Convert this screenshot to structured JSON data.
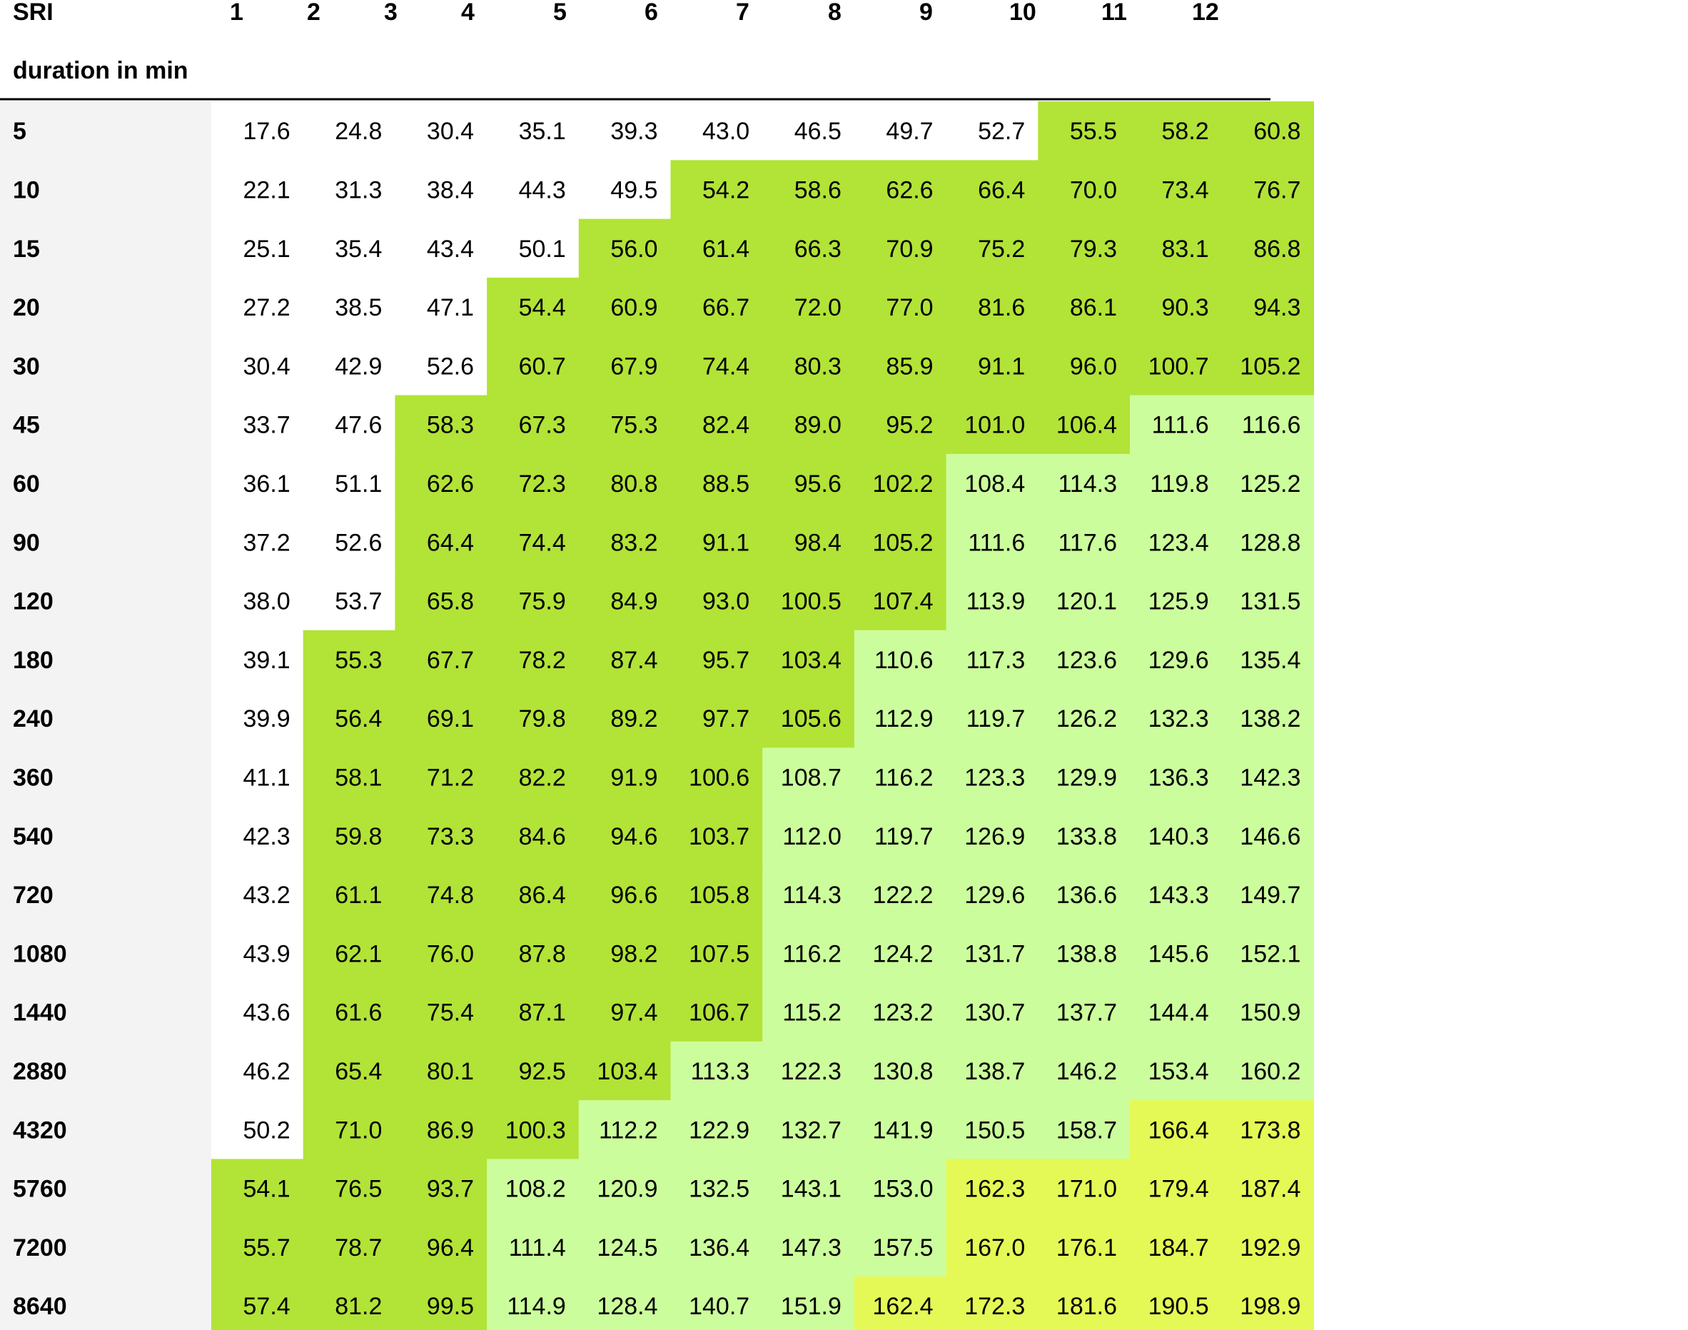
{
  "chart_data": {
    "type": "table",
    "corner_label": "SRI",
    "row_axis_label": "duration in min",
    "columns": [
      "1",
      "2",
      "3",
      "4",
      "5",
      "6",
      "7",
      "8",
      "9",
      "10",
      "11",
      "12"
    ],
    "rows": [
      {
        "label": "5",
        "values": [
          17.6,
          24.8,
          30.4,
          35.1,
          39.3,
          43.0,
          46.5,
          49.7,
          52.7,
          55.5,
          58.2,
          60.8
        ]
      },
      {
        "label": "10",
        "values": [
          22.1,
          31.3,
          38.4,
          44.3,
          49.5,
          54.2,
          58.6,
          62.6,
          66.4,
          70.0,
          73.4,
          76.7
        ]
      },
      {
        "label": "15",
        "values": [
          25.1,
          35.4,
          43.4,
          50.1,
          56.0,
          61.4,
          66.3,
          70.9,
          75.2,
          79.3,
          83.1,
          86.8
        ]
      },
      {
        "label": "20",
        "values": [
          27.2,
          38.5,
          47.1,
          54.4,
          60.9,
          66.7,
          72.0,
          77.0,
          81.6,
          86.1,
          90.3,
          94.3
        ]
      },
      {
        "label": "30",
        "values": [
          30.4,
          42.9,
          52.6,
          60.7,
          67.9,
          74.4,
          80.3,
          85.9,
          91.1,
          96.0,
          100.7,
          105.2
        ]
      },
      {
        "label": "45",
        "values": [
          33.7,
          47.6,
          58.3,
          67.3,
          75.3,
          82.4,
          89.0,
          95.2,
          101.0,
          106.4,
          111.6,
          116.6
        ]
      },
      {
        "label": "60",
        "values": [
          36.1,
          51.1,
          62.6,
          72.3,
          80.8,
          88.5,
          95.6,
          102.2,
          108.4,
          114.3,
          119.8,
          125.2
        ]
      },
      {
        "label": "90",
        "values": [
          37.2,
          52.6,
          64.4,
          74.4,
          83.2,
          91.1,
          98.4,
          105.2,
          111.6,
          117.6,
          123.4,
          128.8
        ]
      },
      {
        "label": "120",
        "values": [
          38.0,
          53.7,
          65.8,
          75.9,
          84.9,
          93.0,
          100.5,
          107.4,
          113.9,
          120.1,
          125.9,
          131.5
        ]
      },
      {
        "label": "180",
        "values": [
          39.1,
          55.3,
          67.7,
          78.2,
          87.4,
          95.7,
          103.4,
          110.6,
          117.3,
          123.6,
          129.6,
          135.4
        ]
      },
      {
        "label": "240",
        "values": [
          39.9,
          56.4,
          69.1,
          79.8,
          89.2,
          97.7,
          105.6,
          112.9,
          119.7,
          126.2,
          132.3,
          138.2
        ]
      },
      {
        "label": "360",
        "values": [
          41.1,
          58.1,
          71.2,
          82.2,
          91.9,
          100.6,
          108.7,
          116.2,
          123.3,
          129.9,
          136.3,
          142.3
        ]
      },
      {
        "label": "540",
        "values": [
          42.3,
          59.8,
          73.3,
          84.6,
          94.6,
          103.7,
          112.0,
          119.7,
          126.9,
          133.8,
          140.3,
          146.6
        ]
      },
      {
        "label": "720",
        "values": [
          43.2,
          61.1,
          74.8,
          86.4,
          96.6,
          105.8,
          114.3,
          122.2,
          129.6,
          136.6,
          143.3,
          149.7
        ]
      },
      {
        "label": "1080",
        "values": [
          43.9,
          62.1,
          76.0,
          87.8,
          98.2,
          107.5,
          116.2,
          124.2,
          131.7,
          138.8,
          145.6,
          152.1
        ]
      },
      {
        "label": "1440",
        "values": [
          43.6,
          61.6,
          75.4,
          87.1,
          97.4,
          106.7,
          115.2,
          123.2,
          130.7,
          137.7,
          144.4,
          150.9
        ]
      },
      {
        "label": "2880",
        "values": [
          46.2,
          65.4,
          80.1,
          92.5,
          103.4,
          113.3,
          122.3,
          130.8,
          138.7,
          146.2,
          153.4,
          160.2
        ]
      },
      {
        "label": "4320",
        "values": [
          50.2,
          71.0,
          86.9,
          100.3,
          112.2,
          122.9,
          132.7,
          141.9,
          150.5,
          158.7,
          166.4,
          173.8
        ]
      },
      {
        "label": "5760",
        "values": [
          54.1,
          76.5,
          93.7,
          108.2,
          120.9,
          132.5,
          143.1,
          153.0,
          162.3,
          171.0,
          179.4,
          187.4
        ]
      },
      {
        "label": "7200",
        "values": [
          55.7,
          78.7,
          96.4,
          111.4,
          124.5,
          136.4,
          147.3,
          157.5,
          167.0,
          176.1,
          184.7,
          192.9
        ]
      },
      {
        "label": "8640",
        "values": [
          57.4,
          81.2,
          99.5,
          114.9,
          128.4,
          140.7,
          151.9,
          162.4,
          172.3,
          181.6,
          190.5,
          198.9
        ]
      }
    ],
    "color_bands": [
      {
        "min": 0,
        "max": 54,
        "color": "#ffffff"
      },
      {
        "min": 54,
        "max": 108,
        "color": "#b2e337"
      },
      {
        "min": 108,
        "max": 162,
        "color": "#ccfd9c"
      },
      {
        "min": 162,
        "max": 999,
        "color": "#e4f955"
      }
    ],
    "row_label_background": "#f3f3f3",
    "header_rule_color": "#000000"
  }
}
